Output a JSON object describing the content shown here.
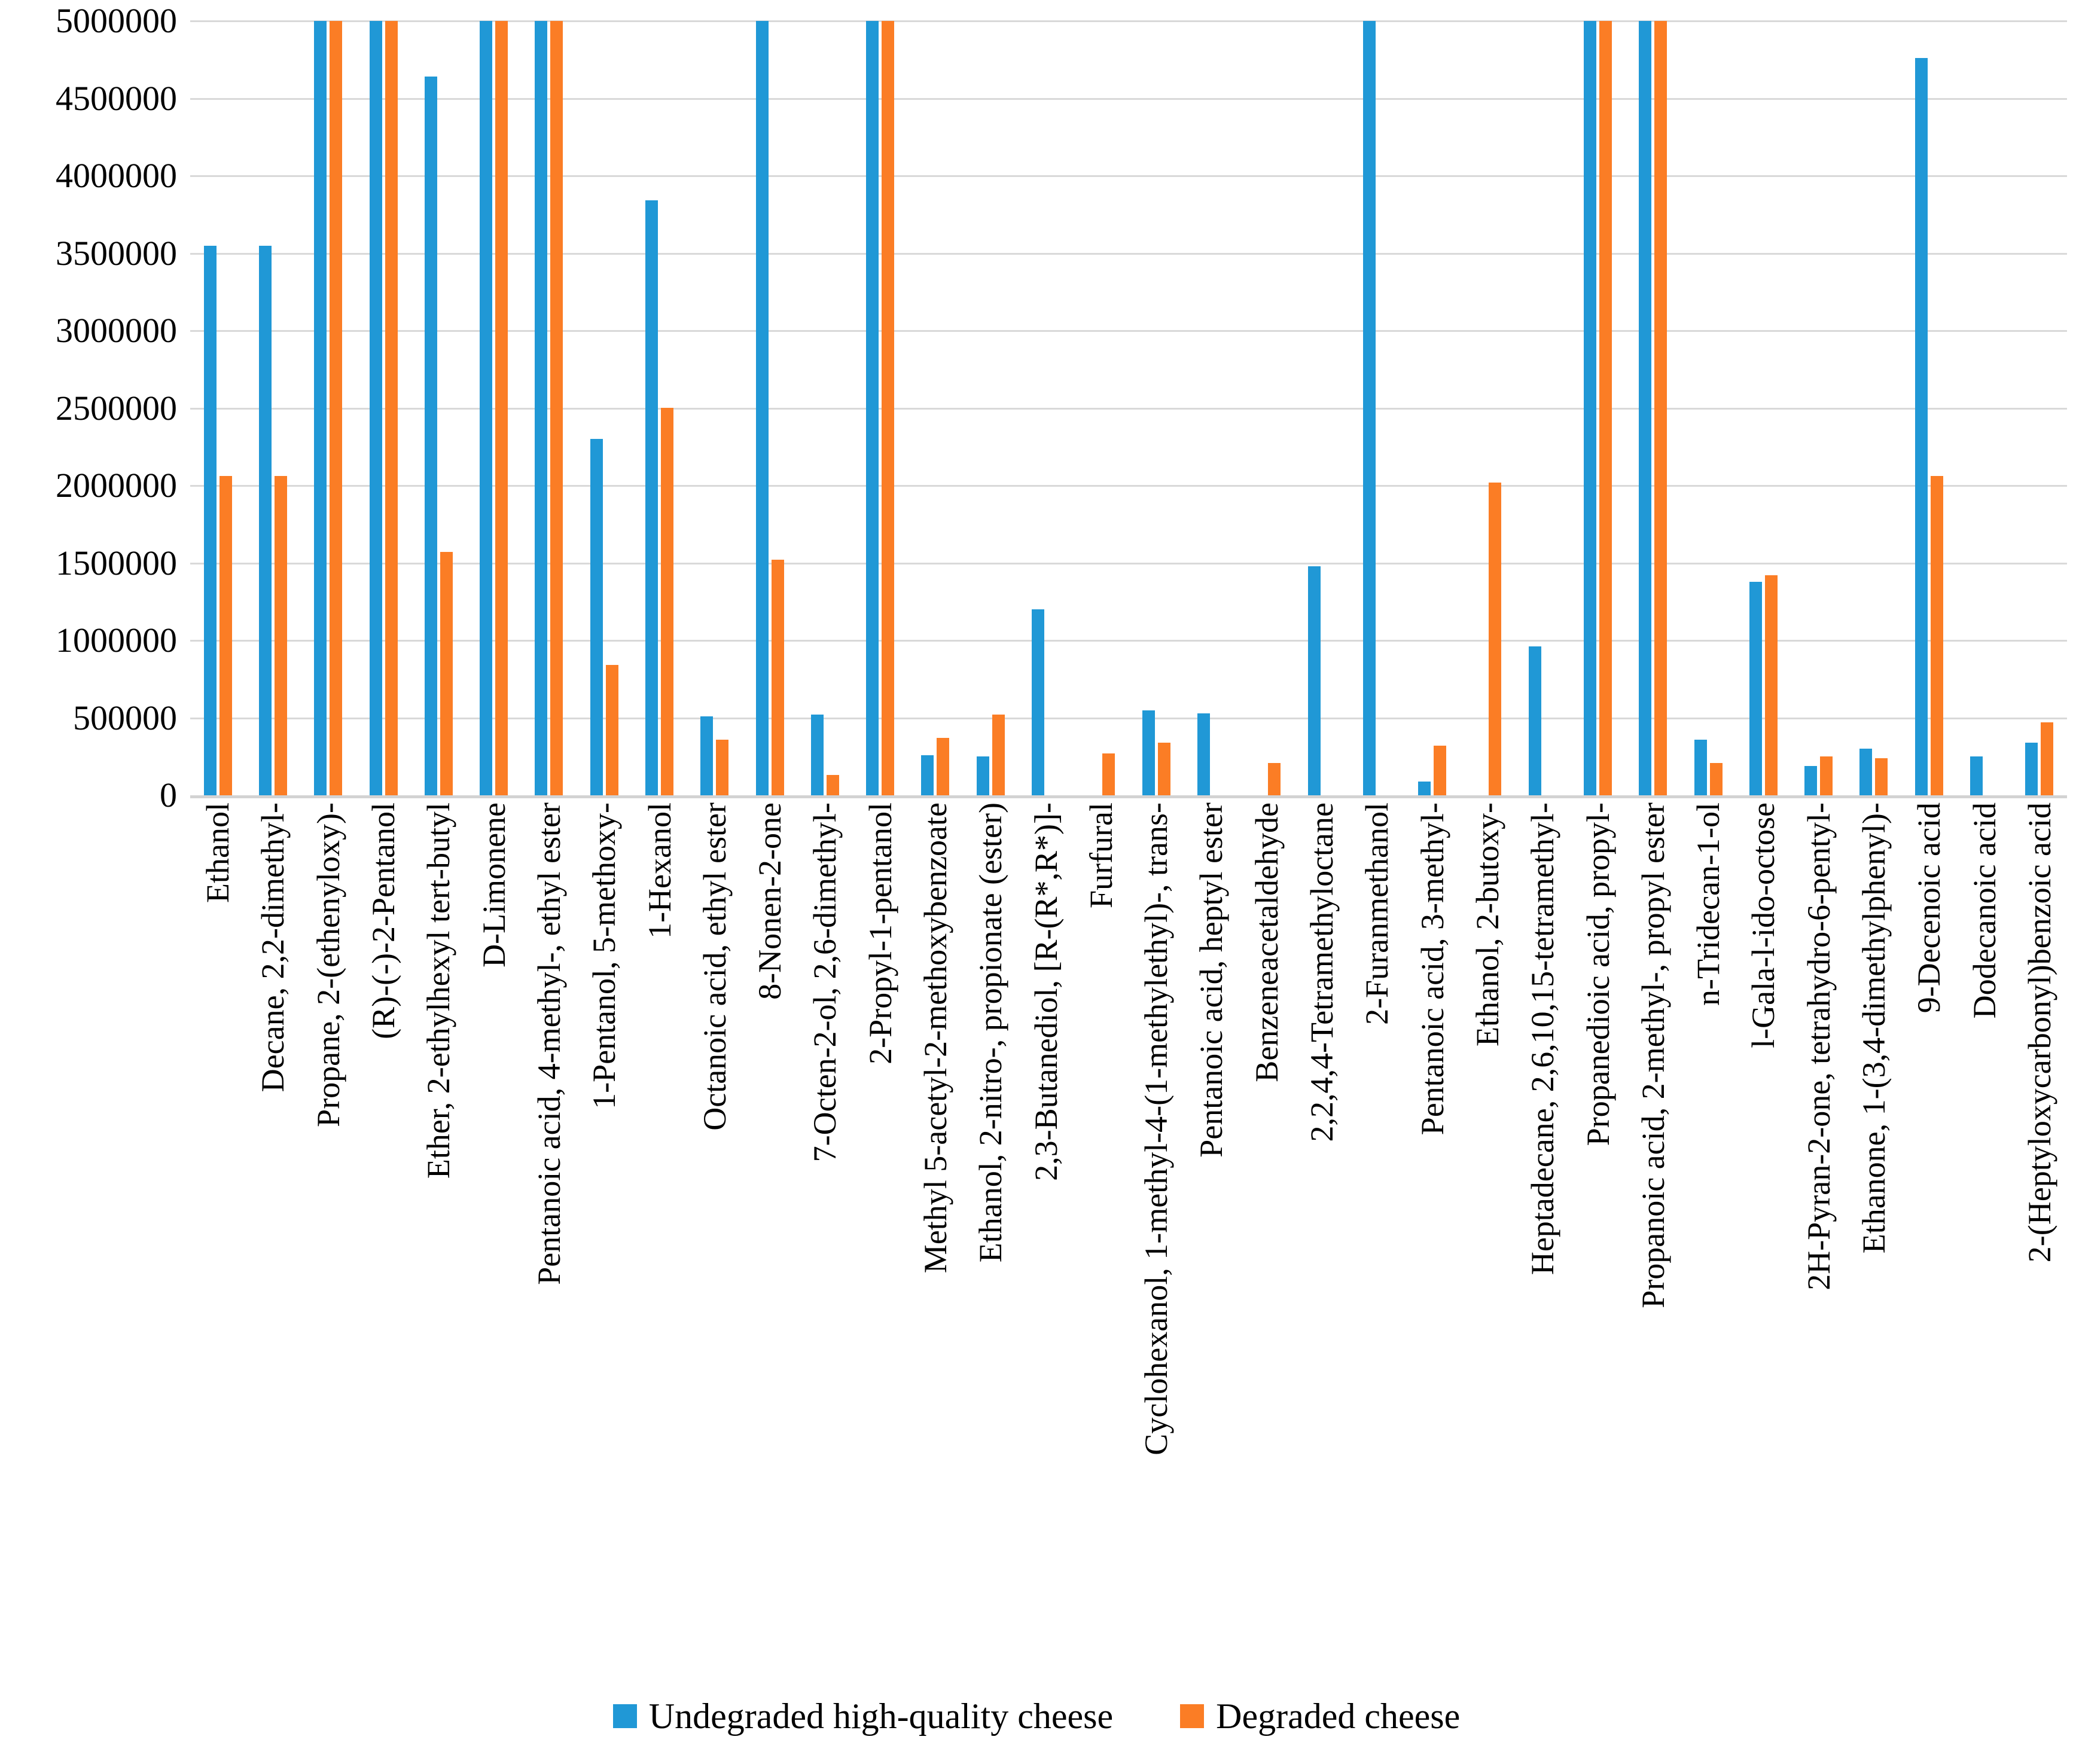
{
  "chart_data": {
    "type": "bar",
    "title": "",
    "xlabel": "",
    "ylabel": "",
    "ylim": [
      0,
      5000000
    ],
    "ytick_step": 500000,
    "ytick_labels": [
      "0",
      "500000",
      "1000000",
      "1500000",
      "2000000",
      "2500000",
      "3000000",
      "3500000",
      "4000000",
      "4500000",
      "5000000"
    ],
    "grid": "horizontal",
    "legend_position": "bottom",
    "categories": [
      "Ethanol",
      "Decane, 2,2-dimethyl-",
      "Propane, 2-(ethenyloxy)-",
      "(R)-(-)-2-Pentanol",
      "Ether, 2-ethylhexyl tert-butyl",
      "D-Limonene",
      "Pentanoic acid, 4-methyl-, ethyl ester",
      "1-Pentanol, 5-methoxy-",
      "1-Hexanol",
      "Octanoic acid, ethyl ester",
      "8-Nonen-2-one",
      "7-Octen-2-ol, 2,6-dimethyl-",
      "2-Propyl-1-pentanol",
      "Methyl 5-acetyl-2-methoxybenzoate",
      "Ethanol, 2-nitro-, propionate (ester)",
      "2,3-Butanediol, [R-(R*,R*)]-",
      "Furfural",
      "Cyclohexanol, 1-methyl-4-(1-methylethyl)-, trans-",
      "Pentanoic acid, heptyl ester",
      "Benzeneacetaldehyde",
      "2,2,4,4-Tetramethyloctane",
      "2-Furanmethanol",
      "Pentanoic acid, 3-methyl-",
      "Ethanol, 2-butoxy-",
      "Heptadecane, 2,6,10,15-tetramethyl-",
      "Propanedioic acid, propyl-",
      "Propanoic acid, 2-methyl-, propyl ester",
      "n-Tridecan-1-ol",
      "l-Gala-l-ido-octose",
      "2H-Pyran-2-one, tetrahydro-6-pentyl-",
      "Ethanone, 1-(3,4-dimethylphenyl)-",
      "9-Decenoic acid",
      "Dodecanoic acid",
      "2-(Heptyloxycarbonyl)benzoic acid"
    ],
    "series": [
      {
        "name": "Undegraded high-quality cheese",
        "color": "#2098D6",
        "values": [
          3550000,
          3550000,
          5000000,
          5000000,
          4640000,
          5000000,
          5000000,
          2300000,
          3840000,
          510000,
          5000000,
          520000,
          5000000,
          260000,
          250000,
          1200000,
          0,
          550000,
          530000,
          0,
          1480000,
          5000000,
          90000,
          0,
          960000,
          5000000,
          5000000,
          360000,
          1380000,
          190000,
          300000,
          4760000,
          250000,
          340000
        ]
      },
      {
        "name": "Degraded cheese",
        "color": "#FB7D25",
        "values": [
          2060000,
          2060000,
          5000000,
          5000000,
          1570000,
          5000000,
          5000000,
          840000,
          2500000,
          360000,
          1520000,
          130000,
          5000000,
          370000,
          520000,
          0,
          270000,
          340000,
          0,
          210000,
          0,
          0,
          320000,
          2020000,
          0,
          5000000,
          5000000,
          210000,
          1420000,
          250000,
          240000,
          2060000,
          0,
          470000
        ]
      }
    ],
    "colors": {
      "gridline": "#d9d9d9",
      "axis_line": "#d3d3d3",
      "text": "#000000",
      "background": "#ffffff"
    }
  }
}
